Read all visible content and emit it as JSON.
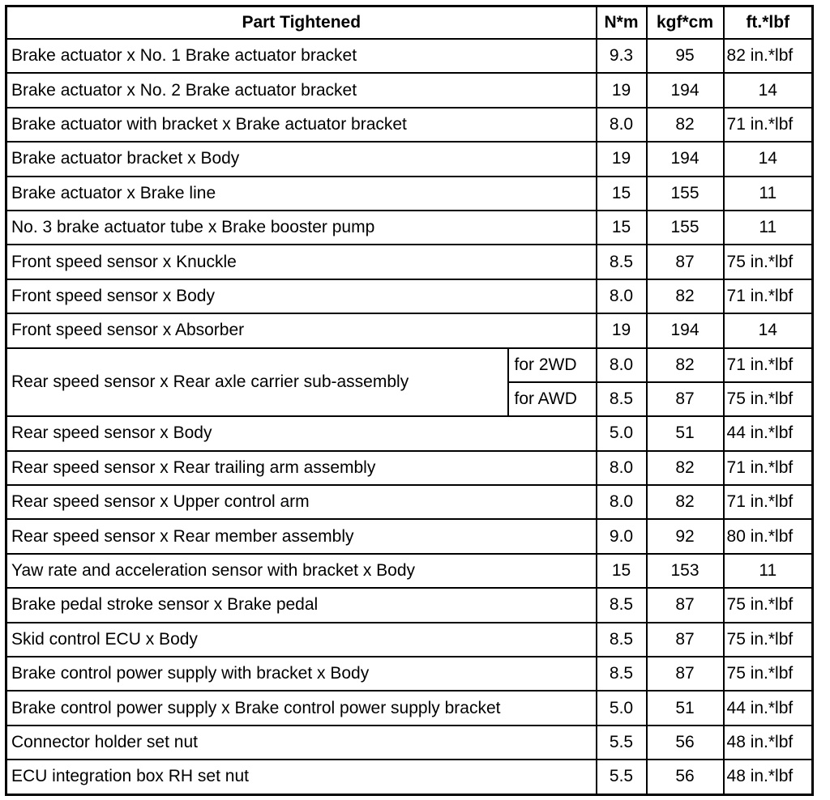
{
  "headers": {
    "part": "Part Tightened",
    "nm": "N*m",
    "kgfcm": "kgf*cm",
    "ftlbf": "ft.*lbf"
  },
  "rows": [
    {
      "part": "Brake actuator x No. 1 Brake actuator bracket",
      "nm": "9.3",
      "kgfcm": "95",
      "ftlbf": "82 in.*lbf"
    },
    {
      "part": "Brake actuator x No. 2 Brake actuator bracket",
      "nm": "19",
      "kgfcm": "194",
      "ftlbf": "14"
    },
    {
      "part": "Brake actuator with bracket x Brake actuator bracket",
      "nm": "8.0",
      "kgfcm": "82",
      "ftlbf": "71 in.*lbf"
    },
    {
      "part": "Brake actuator bracket x Body",
      "nm": "19",
      "kgfcm": "194",
      "ftlbf": "14"
    },
    {
      "part": "Brake actuator x Brake line",
      "nm": "15",
      "kgfcm": "155",
      "ftlbf": "11"
    },
    {
      "part": "No. 3 brake actuator tube x Brake booster pump",
      "nm": "15",
      "kgfcm": "155",
      "ftlbf": "11"
    },
    {
      "part": "Front speed sensor x Knuckle",
      "nm": "8.5",
      "kgfcm": "87",
      "ftlbf": "75 in.*lbf"
    },
    {
      "part": "Front speed sensor x Body",
      "nm": "8.0",
      "kgfcm": "82",
      "ftlbf": "71 in.*lbf"
    },
    {
      "part": "Front speed sensor x Absorber",
      "nm": "19",
      "kgfcm": "194",
      "ftlbf": "14"
    },
    {
      "part": "Rear speed sensor x Rear axle carrier sub-assembly",
      "variants": [
        {
          "label": "for 2WD",
          "nm": "8.0",
          "kgfcm": "82",
          "ftlbf": "71 in.*lbf"
        },
        {
          "label": "for AWD",
          "nm": "8.5",
          "kgfcm": "87",
          "ftlbf": "75 in.*lbf"
        }
      ]
    },
    {
      "part": "Rear speed sensor x Body",
      "nm": "5.0",
      "kgfcm": "51",
      "ftlbf": "44 in.*lbf"
    },
    {
      "part": "Rear speed sensor x Rear trailing arm assembly",
      "nm": "8.0",
      "kgfcm": "82",
      "ftlbf": "71 in.*lbf"
    },
    {
      "part": "Rear speed sensor x Upper control arm",
      "nm": "8.0",
      "kgfcm": "82",
      "ftlbf": "71 in.*lbf"
    },
    {
      "part": "Rear speed sensor x Rear member assembly",
      "nm": "9.0",
      "kgfcm": "92",
      "ftlbf": "80 in.*lbf"
    },
    {
      "part": "Yaw rate and acceleration sensor with bracket x Body",
      "nm": "15",
      "kgfcm": "153",
      "ftlbf": "11"
    },
    {
      "part": "Brake pedal stroke sensor x Brake pedal",
      "nm": "8.5",
      "kgfcm": "87",
      "ftlbf": "75 in.*lbf"
    },
    {
      "part": "Skid control ECU x Body",
      "nm": "8.5",
      "kgfcm": "87",
      "ftlbf": "75 in.*lbf"
    },
    {
      "part": "Brake control power supply with bracket x Body",
      "nm": "8.5",
      "kgfcm": "87",
      "ftlbf": "75 in.*lbf"
    },
    {
      "part": "Brake control power supply x Brake control power supply bracket",
      "nm": "5.0",
      "kgfcm": "51",
      "ftlbf": "44 in.*lbf"
    },
    {
      "part": "Connector holder set nut",
      "nm": "5.5",
      "kgfcm": "56",
      "ftlbf": "48 in.*lbf"
    },
    {
      "part": "ECU integration box RH set nut",
      "nm": "5.5",
      "kgfcm": "56",
      "ftlbf": "48 in.*lbf"
    }
  ]
}
